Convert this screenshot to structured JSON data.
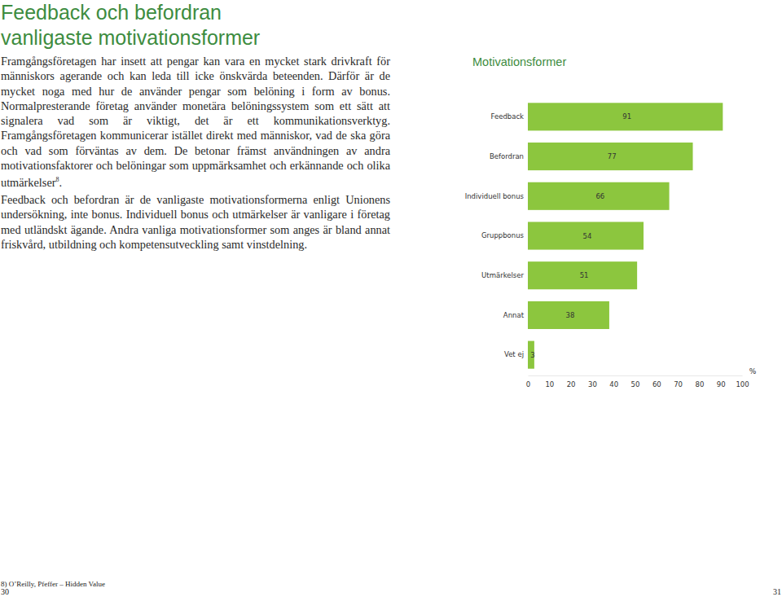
{
  "page": {
    "title_lines": [
      "Feedback och befordran",
      "vanligaste motivationsformer"
    ],
    "paragraphs": [
      {
        "text": "Framgångsföretagen har insett att pengar kan vara en mycket stark drivkraft för människors agerande och kan leda till icke önskvärda beteenden. Därför är de mycket noga med hur de använder pengar som belöning i form av bonus. Normalpresterande företag använder monetära belöningssystem som ett sätt att signalera vad som är viktigt, det är ett kommunikationsverktyg. Framgångsföretagen kommunicerar istället direkt med människor, vad de ska göra och vad som förväntas av dem. De betonar främst användningen av andra motivationsfaktorer och belöningar som uppmärksamhet och erkännande och olika utmärkelser",
        "footnote_ref": "8",
        "end": "."
      },
      {
        "text": "Feedback och befordran är de vanligaste motivationsformerna enligt Unionens undersökning, inte bonus. Individuell bonus och utmärkelser är vanligare i företag med utländskt ägande. Andra vanliga motivationsformer som anges är bland annat friskvård, utbildning och kompetensutveckling samt vinstdelning."
      }
    ],
    "footnote": "8) O’Reilly, Pfeffer – Hidden Value",
    "page_numbers": [
      "30",
      "31"
    ]
  },
  "chart_data": {
    "type": "bar",
    "orientation": "horizontal",
    "title": "Motivationsformer",
    "x_label": "%",
    "categories": [
      "Feedback",
      "Befordran",
      "Individuell bonus",
      "Gruppbonus",
      "Utmärkelser",
      "Annat",
      "Vet ej"
    ],
    "values": [
      91,
      77,
      66,
      54,
      51,
      38,
      3
    ],
    "color": "#8cc63e",
    "xlim": [
      0,
      100
    ],
    "xticks": [
      0,
      10,
      20,
      30,
      40,
      50,
      60,
      70,
      80,
      90,
      100
    ],
    "grid": false,
    "data_labels": true
  }
}
